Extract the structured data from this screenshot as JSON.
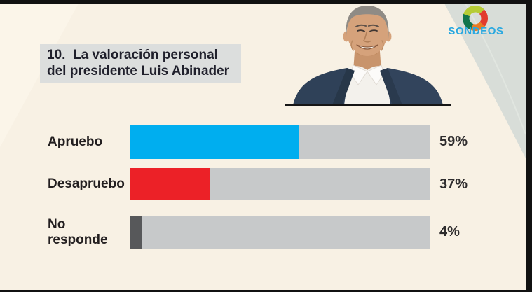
{
  "brand": {
    "logo_text": "SONDEOS",
    "logo_text_color": "#29a8e0",
    "ring_colors": {
      "lime": "#b6cc35",
      "red": "#e23a2e",
      "orange": "#e87b23",
      "green": "#11744a"
    }
  },
  "question": {
    "title": "10.  La valoración personal del presidente Luis Abinader"
  },
  "portrait": {
    "subject": "Luis Abinader"
  },
  "chart_data": {
    "type": "bar",
    "orientation": "horizontal",
    "title": "10. La valoración personal del presidente Luis Abinader",
    "categories": [
      "Apruebo",
      "Desapruebo",
      "No responde"
    ],
    "values": [
      59,
      37,
      4
    ],
    "value_labels": [
      "59%",
      "37%",
      "4%"
    ],
    "colors": [
      "#00aeef",
      "#ec2127",
      "#57585a"
    ],
    "track_color": "#c7c9ca",
    "drawn_width_pct": [
      56.2,
      26.6,
      4.0
    ],
    "xlim": [
      0,
      100
    ],
    "grid": false,
    "legend": false
  }
}
